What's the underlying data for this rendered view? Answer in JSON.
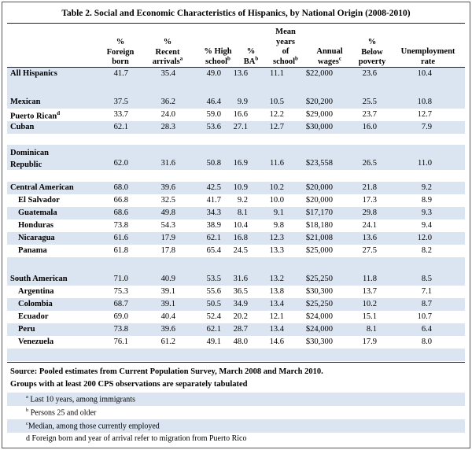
{
  "title": "Table 2.  Social and Economic Characteristics of Hispanics, by National Origin (2008-2010)",
  "headers": {
    "foreign_born": [
      "%",
      "Foreign",
      "born"
    ],
    "recent_arrivals": [
      "%",
      "Recent",
      "arrivals"
    ],
    "recent_arrivals_sup": "a",
    "high_school": "% High",
    "high_school_2": "school",
    "high_school_sup": "b",
    "ba": [
      "%",
      "BA"
    ],
    "ba_sup": "b",
    "mean_years": [
      "Mean",
      "years",
      "of",
      "school"
    ],
    "mean_years_sup": "b",
    "annual_wages": [
      "Annual",
      "wages"
    ],
    "annual_wages_sup": "c",
    "below_poverty": [
      "%",
      "Below",
      "poverty"
    ],
    "unemployment": [
      "Unemployment",
      "rate"
    ]
  },
  "rows": [
    {
      "label": "All Hispanics",
      "values": [
        "41.7",
        "35.4",
        "49.0",
        "13.6",
        "11.1",
        "$22,000",
        "23.6",
        "10.4"
      ]
    },
    {
      "label": "Mexican",
      "values": [
        "37.5",
        "36.2",
        "46.4",
        "9.9",
        "10.5",
        "$20,200",
        "25.5",
        "10.8"
      ]
    },
    {
      "label": "Puerto Rican",
      "sup": "d",
      "values": [
        "33.7",
        "24.0",
        "59.0",
        "16.6",
        "12.2",
        "$29,000",
        "23.7",
        "12.7"
      ]
    },
    {
      "label": "Cuban",
      "values": [
        "62.1",
        "28.3",
        "53.6",
        "27.1",
        "12.7",
        "$30,000",
        "16.0",
        "7.9"
      ]
    },
    {
      "label": "Dominican",
      "label2": "Republic",
      "values": [
        "62.0",
        "31.6",
        "50.8",
        "16.9",
        "11.6",
        "$23,558",
        "26.5",
        "11.0"
      ]
    },
    {
      "label": "Central American",
      "values": [
        "68.0",
        "39.6",
        "42.5",
        "10.9",
        "10.2",
        "$20,000",
        "21.8",
        "9.2"
      ]
    },
    {
      "label": "El Salvador",
      "values": [
        "66.8",
        "32.5",
        "41.7",
        "9.2",
        "10.0",
        "$20,000",
        "17.3",
        "8.9"
      ]
    },
    {
      "label": "Guatemala",
      "values": [
        "68.6",
        "49.8",
        "34.3",
        "8.1",
        "9.1",
        "$17,170",
        "29.8",
        "9.3"
      ]
    },
    {
      "label": "Honduras",
      "values": [
        "73.8",
        "54.3",
        "38.9",
        "10.4",
        "9.8",
        "$18,180",
        "24.1",
        "9.4"
      ]
    },
    {
      "label": "Nicaragua",
      "values": [
        "61.6",
        "17.9",
        "62.1",
        "16.8",
        "12.3",
        "$21,008",
        "13.6",
        "12.0"
      ]
    },
    {
      "label": "Panama",
      "values": [
        "61.8",
        "17.8",
        "65.4",
        "24.5",
        "13.3",
        "$25,000",
        "27.5",
        "8.2"
      ]
    },
    {
      "label": "South American",
      "values": [
        "71.0",
        "40.9",
        "53.5",
        "31.6",
        "13.2",
        "$25,250",
        "11.8",
        "8.5"
      ]
    },
    {
      "label": "Argentina",
      "values": [
        "75.3",
        "39.1",
        "55.6",
        "36.5",
        "13.8",
        "$30,300",
        "13.7",
        "7.1"
      ]
    },
    {
      "label": "Colombia",
      "values": [
        "68.7",
        "39.1",
        "50.5",
        "34.9",
        "13.4",
        "$25,250",
        "10.2",
        "8.7"
      ]
    },
    {
      "label": "Ecuador",
      "values": [
        "69.0",
        "40.4",
        "52.4",
        "20.2",
        "12.1",
        "$24,000",
        "15.1",
        "10.7"
      ]
    },
    {
      "label": "Peru",
      "values": [
        "73.8",
        "39.6",
        "62.1",
        "28.7",
        "13.4",
        "$24,000",
        "8.1",
        "6.4"
      ]
    },
    {
      "label": "Venezuela",
      "values": [
        "76.1",
        "61.2",
        "49.1",
        "48.0",
        "14.6",
        "$30,300",
        "17.9",
        "8.0"
      ]
    }
  ],
  "footer": {
    "source": "Source: Pooled estimates from Current Population Survey, March 2008 and March 2010.",
    "groups": "Groups with at least 200 CPS observations are separately tabulated",
    "notes": [
      {
        "sup": "a",
        "text": " Last 10 years, among immigrants"
      },
      {
        "sup": "b",
        "text": " Persons 25 and older"
      },
      {
        "sup": "c",
        "text": "Median, among those currently employed"
      },
      {
        "sup": "",
        "text": "d Foreign born and year of arrival refer to migration from Puerto Rico"
      }
    ]
  }
}
